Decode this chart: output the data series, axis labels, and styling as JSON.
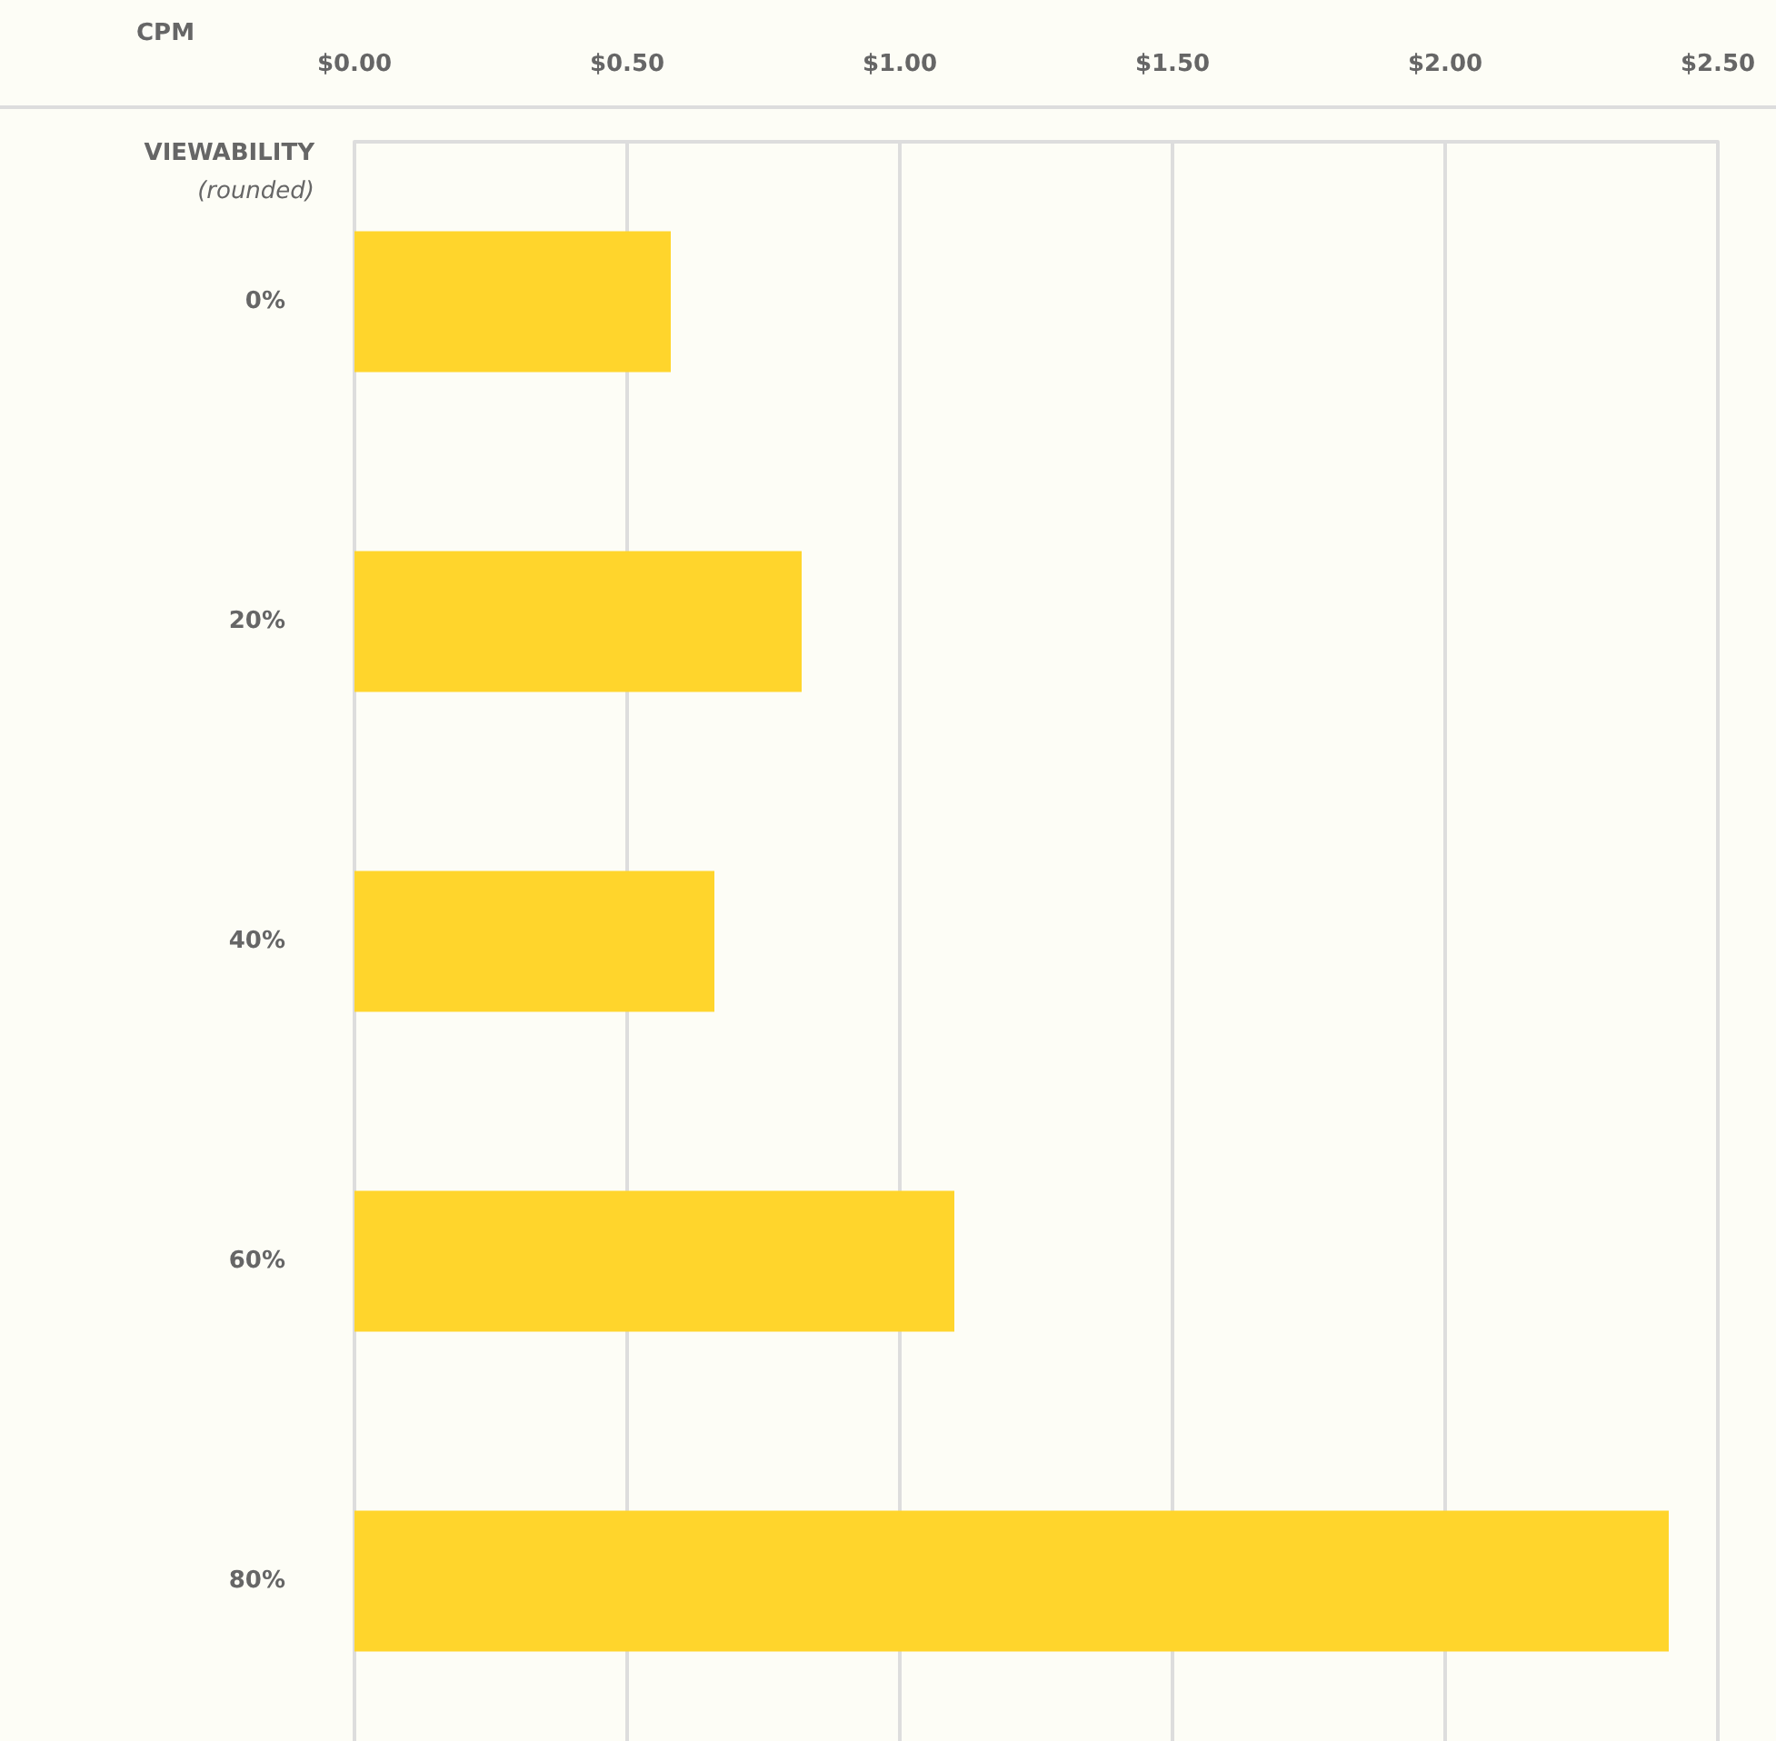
{
  "chart_data": {
    "type": "bar",
    "orientation": "horizontal",
    "xlabel": "CPM",
    "ylabel": "VIEWABILITY",
    "annotations": [
      "(rounded)"
    ],
    "categories": [
      "0%",
      "20%",
      "40%",
      "60%",
      "80%"
    ],
    "values": [
      0.58,
      0.82,
      0.66,
      1.1,
      2.41
    ],
    "color": "#ffd52c",
    "xlim": [
      0,
      2.5
    ],
    "xticks": [
      {
        "value": 0,
        "label": "$0.00"
      },
      {
        "value": 0.5,
        "label": "$0.50"
      },
      {
        "value": 1,
        "label": "$1.00"
      },
      {
        "value": 1.5,
        "label": "$1.50"
      },
      {
        "value": 2,
        "label": "$2.00"
      },
      {
        "value": 2.5,
        "label": "$2.50"
      }
    ],
    "grid": "x"
  }
}
